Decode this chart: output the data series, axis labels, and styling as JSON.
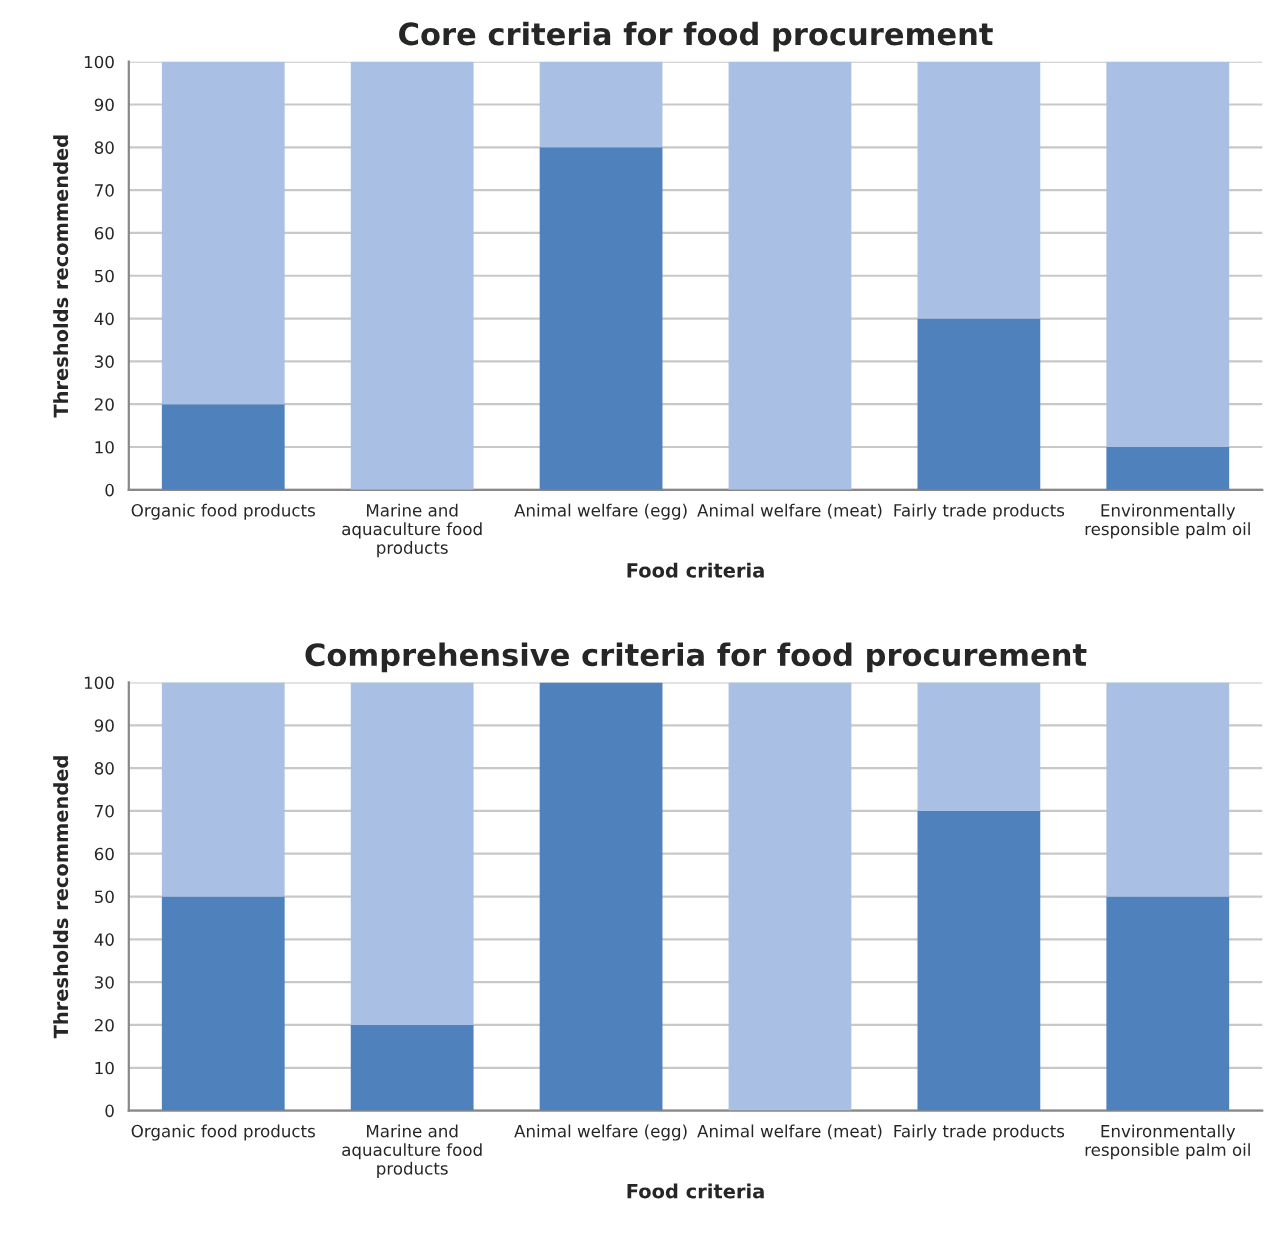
{
  "chart_data": [
    {
      "type": "bar",
      "title": "Core criteria for food procurement",
      "xlabel": "Food criteria",
      "ylabel": "Thresholds recommended",
      "categories": [
        "Organic food products",
        "Marine and\naquaculture food\nproducts",
        "Animal welfare (egg)",
        "Animal welfare (meat)",
        "Fairly trade products",
        "Environmentally\nresponsible palm oil"
      ],
      "stacked": true,
      "series": [
        {
          "color": "#4f81bd",
          "values": [
            20,
            0,
            80,
            0,
            40,
            10
          ]
        },
        {
          "color": "#a9c0e4",
          "values": [
            80,
            100,
            20,
            100,
            60,
            90
          ]
        }
      ],
      "ylim": [
        0,
        100
      ],
      "yticks": [
        0,
        10,
        20,
        30,
        40,
        50,
        60,
        70,
        80,
        90,
        100
      ],
      "grid": "y",
      "legend": false
    },
    {
      "type": "bar",
      "title": "Comprehensive criteria for food procurement",
      "xlabel": "Food criteria",
      "ylabel": "Thresholds recommended",
      "categories": [
        "Organic food products",
        "Marine and\naquaculture food\nproducts",
        "Animal welfare (egg)",
        "Animal welfare (meat)",
        "Fairly trade products",
        "Environmentally\nresponsible palm oil"
      ],
      "stacked": true,
      "series": [
        {
          "color": "#4f81bd",
          "values": [
            50,
            20,
            100,
            0,
            70,
            50
          ]
        },
        {
          "color": "#a9c0e4",
          "values": [
            50,
            80,
            0,
            100,
            30,
            50
          ]
        }
      ],
      "ylim": [
        0,
        100
      ],
      "yticks": [
        0,
        10,
        20,
        30,
        40,
        50,
        60,
        70,
        80,
        90,
        100
      ],
      "grid": "y",
      "legend": false
    }
  ]
}
